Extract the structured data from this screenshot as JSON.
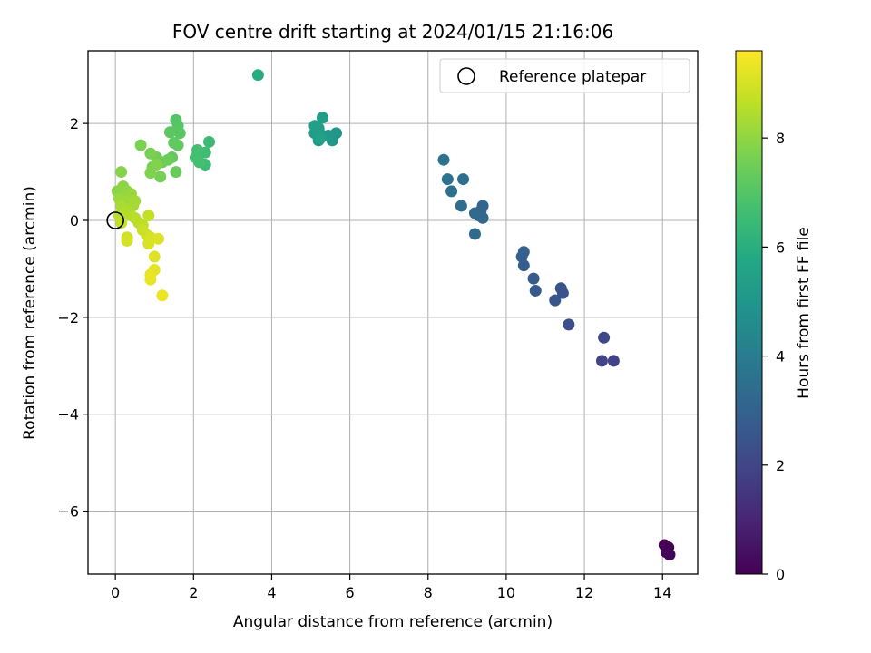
{
  "chart_data": {
    "type": "scatter",
    "title": "FOV centre drift starting at 2024/01/15 21:16:06",
    "xlabel": "Angular distance from reference (arcmin)",
    "ylabel": "Rotation from reference (arcmin)",
    "xlim": [
      -0.7,
      14.9
    ],
    "ylim": [
      -7.3,
      3.5
    ],
    "xticks": [
      0,
      2,
      4,
      6,
      8,
      10,
      12,
      14
    ],
    "xtick_labels": [
      "0",
      "2",
      "4",
      "6",
      "8",
      "10",
      "12",
      "14"
    ],
    "yticks": [
      -6,
      -4,
      -2,
      0,
      2
    ],
    "ytick_labels": [
      "−6",
      "−4",
      "−2",
      "0",
      "2"
    ],
    "grid": true,
    "legend": {
      "position": "top-right",
      "entries": [
        "Reference platepar"
      ]
    },
    "reference_point": {
      "x": 0,
      "y": 0
    },
    "colorbar": {
      "label": "Hours from first FF file",
      "range": [
        0,
        9.6
      ],
      "ticks": [
        0,
        2,
        4,
        6,
        8
      ],
      "tick_labels": [
        "0",
        "2",
        "4",
        "6",
        "8"
      ],
      "colormap": "viridis"
    },
    "points": [
      {
        "x": 14.05,
        "y": -6.7,
        "h": 0.0
      },
      {
        "x": 14.15,
        "y": -6.75,
        "h": 0.05
      },
      {
        "x": 14.1,
        "y": -6.85,
        "h": 0.1
      },
      {
        "x": 14.18,
        "y": -6.9,
        "h": 0.15
      },
      {
        "x": 12.75,
        "y": -2.9,
        "h": 1.9
      },
      {
        "x": 12.45,
        "y": -2.9,
        "h": 1.95
      },
      {
        "x": 12.5,
        "y": -2.42,
        "h": 2.05
      },
      {
        "x": 11.6,
        "y": -2.15,
        "h": 2.3
      },
      {
        "x": 11.45,
        "y": -1.5,
        "h": 2.45
      },
      {
        "x": 11.4,
        "y": -1.4,
        "h": 2.5
      },
      {
        "x": 11.25,
        "y": -1.65,
        "h": 2.55
      },
      {
        "x": 10.75,
        "y": -1.45,
        "h": 2.7
      },
      {
        "x": 10.7,
        "y": -1.2,
        "h": 2.75
      },
      {
        "x": 10.45,
        "y": -0.93,
        "h": 2.85
      },
      {
        "x": 10.4,
        "y": -0.75,
        "h": 2.9
      },
      {
        "x": 10.45,
        "y": -0.65,
        "h": 2.95
      },
      {
        "x": 9.4,
        "y": 0.3,
        "h": 3.1
      },
      {
        "x": 9.35,
        "y": 0.2,
        "h": 3.15
      },
      {
        "x": 9.3,
        "y": 0.1,
        "h": 3.2
      },
      {
        "x": 9.4,
        "y": 0.05,
        "h": 3.25
      },
      {
        "x": 9.2,
        "y": 0.15,
        "h": 3.3
      },
      {
        "x": 9.2,
        "y": -0.28,
        "h": 3.35
      },
      {
        "x": 8.85,
        "y": 0.3,
        "h": 3.4
      },
      {
        "x": 8.9,
        "y": 0.85,
        "h": 3.45
      },
      {
        "x": 8.6,
        "y": 0.6,
        "h": 3.55
      },
      {
        "x": 8.5,
        "y": 0.85,
        "h": 3.6
      },
      {
        "x": 8.4,
        "y": 1.25,
        "h": 3.7
      },
      {
        "x": 5.65,
        "y": 1.8,
        "h": 5.0
      },
      {
        "x": 5.55,
        "y": 1.65,
        "h": 5.05
      },
      {
        "x": 5.45,
        "y": 1.75,
        "h": 5.1
      },
      {
        "x": 5.3,
        "y": 1.75,
        "h": 5.15
      },
      {
        "x": 5.2,
        "y": 1.65,
        "h": 5.2
      },
      {
        "x": 5.1,
        "y": 1.8,
        "h": 5.25
      },
      {
        "x": 5.2,
        "y": 1.9,
        "h": 5.3
      },
      {
        "x": 5.3,
        "y": 2.12,
        "h": 5.35
      },
      {
        "x": 5.1,
        "y": 1.95,
        "h": 5.4
      },
      {
        "x": 5.25,
        "y": 1.7,
        "h": 5.45
      },
      {
        "x": 3.65,
        "y": 3.0,
        "h": 5.9
      },
      {
        "x": 2.4,
        "y": 1.62,
        "h": 6.5
      },
      {
        "x": 2.3,
        "y": 1.15,
        "h": 6.55
      },
      {
        "x": 2.3,
        "y": 1.4,
        "h": 6.6
      },
      {
        "x": 2.1,
        "y": 1.45,
        "h": 6.65
      },
      {
        "x": 2.05,
        "y": 1.3,
        "h": 6.7
      },
      {
        "x": 2.15,
        "y": 1.2,
        "h": 6.72
      },
      {
        "x": 1.55,
        "y": 2.07,
        "h": 7.0
      },
      {
        "x": 1.6,
        "y": 1.95,
        "h": 7.05
      },
      {
        "x": 1.65,
        "y": 1.8,
        "h": 7.1
      },
      {
        "x": 1.4,
        "y": 1.82,
        "h": 7.15
      },
      {
        "x": 1.5,
        "y": 1.6,
        "h": 7.2
      },
      {
        "x": 1.6,
        "y": 1.55,
        "h": 7.25
      },
      {
        "x": 1.45,
        "y": 1.3,
        "h": 7.3
      },
      {
        "x": 1.55,
        "y": 1.0,
        "h": 7.35
      },
      {
        "x": 1.35,
        "y": 1.25,
        "h": 7.4
      },
      {
        "x": 1.2,
        "y": 1.2,
        "h": 7.45
      },
      {
        "x": 1.05,
        "y": 1.3,
        "h": 7.5
      },
      {
        "x": 1.15,
        "y": 0.9,
        "h": 7.55
      },
      {
        "x": 0.95,
        "y": 1.1,
        "h": 7.6
      },
      {
        "x": 0.9,
        "y": 1.38,
        "h": 7.65
      },
      {
        "x": 0.65,
        "y": 1.55,
        "h": 7.7
      },
      {
        "x": 0.9,
        "y": 0.98,
        "h": 7.75
      },
      {
        "x": 1.05,
        "y": 1.15,
        "h": 7.8
      },
      {
        "x": 0.15,
        "y": 1.0,
        "h": 7.85
      },
      {
        "x": 0.05,
        "y": 0.6,
        "h": 7.9
      },
      {
        "x": 0.2,
        "y": 0.7,
        "h": 7.95
      },
      {
        "x": 0.3,
        "y": 0.6,
        "h": 8.0
      },
      {
        "x": 0.25,
        "y": 0.5,
        "h": 8.05
      },
      {
        "x": 0.4,
        "y": 0.55,
        "h": 8.1
      },
      {
        "x": 0.1,
        "y": 0.45,
        "h": 8.15
      },
      {
        "x": 0.3,
        "y": 0.4,
        "h": 8.2
      },
      {
        "x": 0.5,
        "y": 0.4,
        "h": 8.25
      },
      {
        "x": 0.45,
        "y": 0.3,
        "h": 8.3
      },
      {
        "x": 0.15,
        "y": 0.3,
        "h": 8.35
      },
      {
        "x": 0.3,
        "y": 0.2,
        "h": 8.4
      },
      {
        "x": 0.2,
        "y": 0.15,
        "h": 8.45
      },
      {
        "x": 0.4,
        "y": 0.1,
        "h": 8.5
      },
      {
        "x": 0.5,
        "y": 0.05,
        "h": 8.55
      },
      {
        "x": 0.1,
        "y": 0.1,
        "h": 8.55
      },
      {
        "x": 0.6,
        "y": -0.05,
        "h": 8.6
      },
      {
        "x": 0.7,
        "y": -0.1,
        "h": 8.65
      },
      {
        "x": 0.15,
        "y": -0.05,
        "h": 8.7
      },
      {
        "x": 0.85,
        "y": 0.1,
        "h": 8.75
      },
      {
        "x": 0.7,
        "y": -0.2,
        "h": 8.8
      },
      {
        "x": 0.8,
        "y": -0.3,
        "h": 8.85
      },
      {
        "x": 0.3,
        "y": -0.35,
        "h": 8.9
      },
      {
        "x": 0.3,
        "y": -0.42,
        "h": 8.95
      },
      {
        "x": 0.9,
        "y": -0.35,
        "h": 9.0
      },
      {
        "x": 0.85,
        "y": -0.48,
        "h": 9.05
      },
      {
        "x": 1.1,
        "y": -0.38,
        "h": 9.1
      },
      {
        "x": 1.0,
        "y": -0.75,
        "h": 9.15
      },
      {
        "x": 1.0,
        "y": -1.02,
        "h": 9.2
      },
      {
        "x": 0.9,
        "y": -1.12,
        "h": 9.25
      },
      {
        "x": 0.9,
        "y": -1.22,
        "h": 9.3
      },
      {
        "x": 1.2,
        "y": -1.55,
        "h": 9.35
      }
    ]
  }
}
